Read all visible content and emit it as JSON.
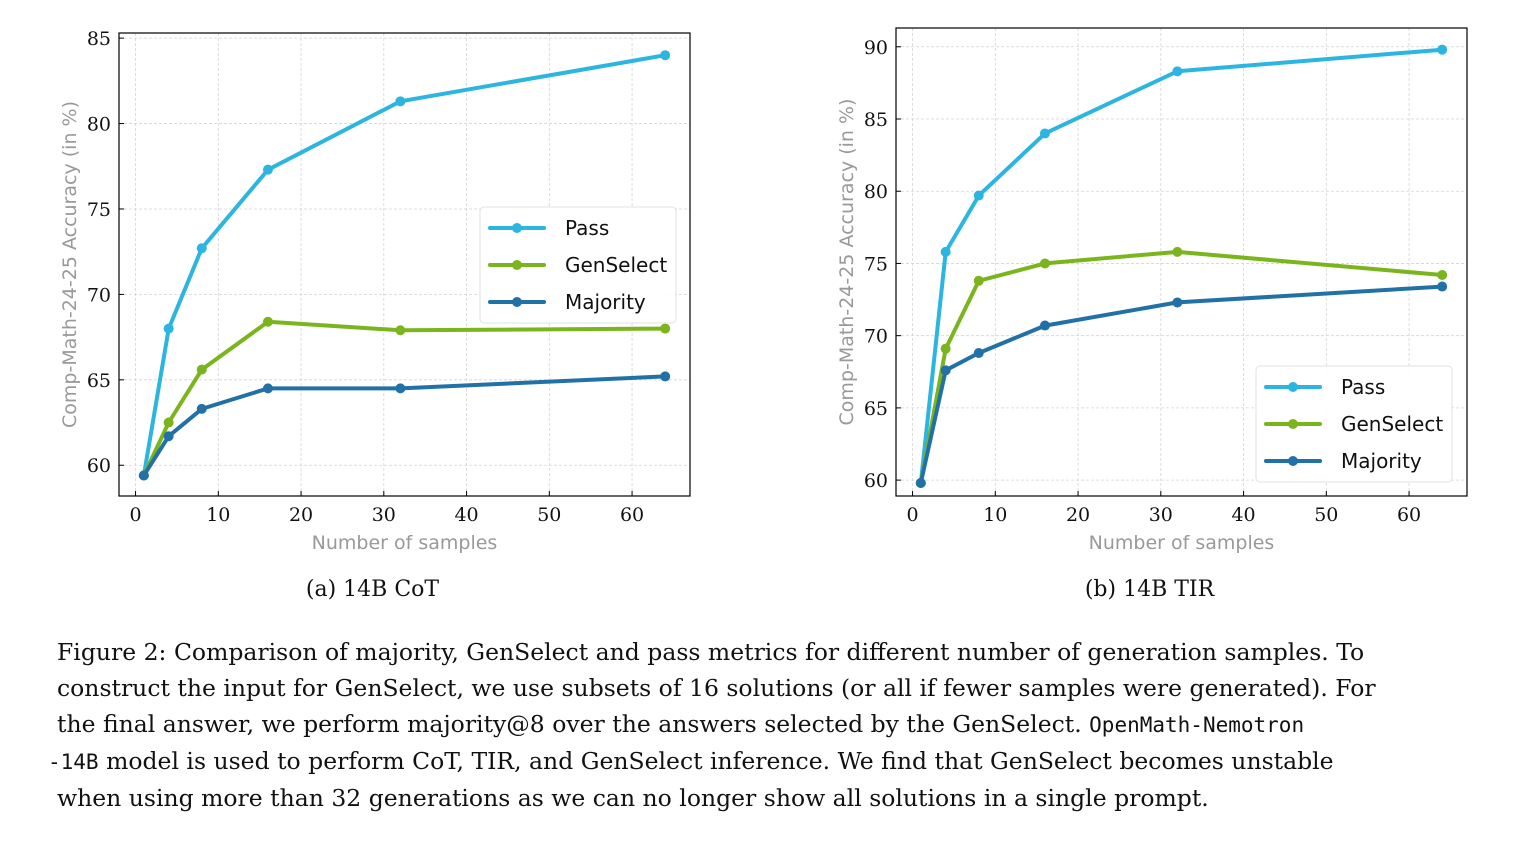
{
  "chart_data": [
    {
      "type": "line",
      "subcaption": "(a) 14B CoT",
      "xlabel": "Number of samples",
      "ylabel": "Comp-Math-24-25 Accuracy (in %)",
      "x": [
        1,
        4,
        8,
        16,
        32,
        64
      ],
      "xlim": [
        -2,
        67
      ],
      "ylim": [
        58.2,
        85.3
      ],
      "xticks": [
        0,
        10,
        20,
        30,
        40,
        50,
        60
      ],
      "yticks": [
        60,
        65,
        70,
        75,
        80,
        85
      ],
      "grid": true,
      "legend_position": "center-right",
      "series": [
        {
          "name": "Pass",
          "color": "#2cb5e0",
          "values": [
            59.4,
            68.0,
            72.7,
            77.3,
            81.3,
            84.0
          ]
        },
        {
          "name": "GenSelect",
          "color": "#7ab51d",
          "values": [
            59.4,
            62.5,
            65.6,
            68.4,
            67.9,
            68.0
          ]
        },
        {
          "name": "Majority",
          "color": "#2271a6",
          "values": [
            59.4,
            61.7,
            63.3,
            64.5,
            64.5,
            65.2
          ]
        }
      ]
    },
    {
      "type": "line",
      "subcaption": "(b) 14B TIR",
      "xlabel": "Number of samples",
      "ylabel": "Comp-Math-24-25 Accuracy (in %)",
      "x": [
        1,
        4,
        8,
        16,
        32,
        64
      ],
      "xlim": [
        -2,
        67
      ],
      "ylim": [
        58.9,
        91.3
      ],
      "xticks": [
        0,
        10,
        20,
        30,
        40,
        50,
        60
      ],
      "yticks": [
        60,
        65,
        70,
        75,
        80,
        85,
        90
      ],
      "grid": true,
      "legend_position": "lower-right",
      "series": [
        {
          "name": "Pass",
          "color": "#2cb5e0",
          "values": [
            59.8,
            75.8,
            79.7,
            84.0,
            88.3,
            89.8
          ]
        },
        {
          "name": "GenSelect",
          "color": "#7ab51d",
          "values": [
            59.8,
            69.1,
            73.8,
            75.0,
            75.8,
            74.2
          ]
        },
        {
          "name": "Majority",
          "color": "#2271a6",
          "values": [
            59.8,
            67.6,
            68.8,
            70.7,
            72.3,
            73.4
          ]
        }
      ]
    }
  ],
  "caption": {
    "line1": "Figure 2: Comparison of majority, GenSelect and pass metrics for different number of generation samples. To",
    "line2": "construct the input for GenSelect, we use subsets of 16 solutions (or all if fewer samples were generated). For",
    "line3_text": "the final answer, we perform majority@8 over the answers selected by the GenSelect.",
    "line3_code": "OpenMath-Nemotron",
    "line4_code": "-14B",
    "line4_text": "model is used to perform CoT, TIR, and GenSelect inference. We find that GenSelect becomes unstable",
    "line5": "when using more than 32 generations as we can no longer show all solutions in a single prompt."
  }
}
